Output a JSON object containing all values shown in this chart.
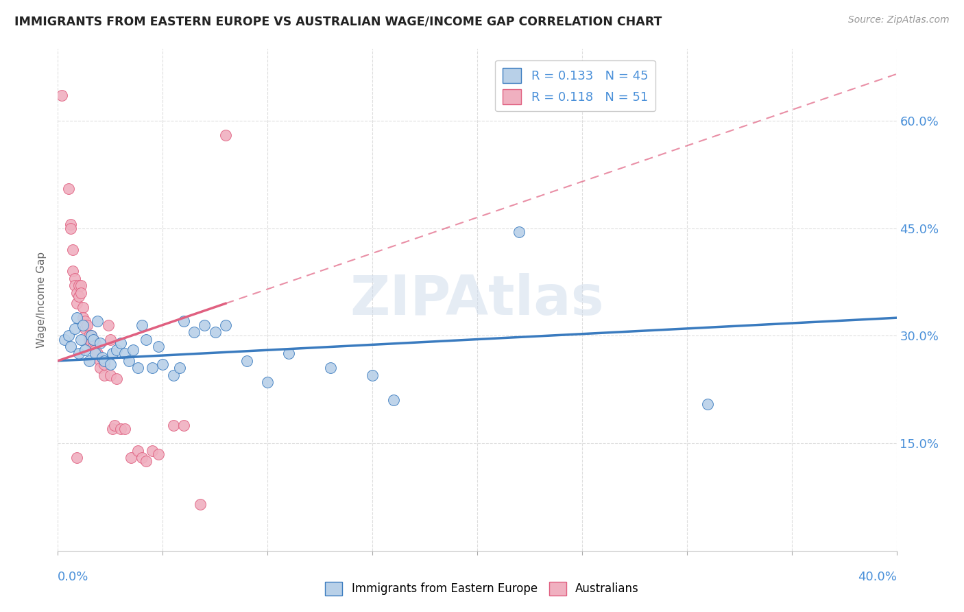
{
  "title": "IMMIGRANTS FROM EASTERN EUROPE VS AUSTRALIAN WAGE/INCOME GAP CORRELATION CHART",
  "source": "Source: ZipAtlas.com",
  "legend_labels": [
    "Immigrants from Eastern Europe",
    "Australians"
  ],
  "legend_R": [
    0.133,
    0.118
  ],
  "legend_N": [
    45,
    51
  ],
  "blue_color": "#b8d0e8",
  "pink_color": "#f0b0c0",
  "blue_line_color": "#3a7bbf",
  "pink_line_color": "#e06080",
  "blue_scatter": [
    [
      0.003,
      0.295
    ],
    [
      0.005,
      0.3
    ],
    [
      0.006,
      0.285
    ],
    [
      0.008,
      0.31
    ],
    [
      0.009,
      0.325
    ],
    [
      0.01,
      0.275
    ],
    [
      0.011,
      0.295
    ],
    [
      0.012,
      0.315
    ],
    [
      0.013,
      0.28
    ],
    [
      0.015,
      0.265
    ],
    [
      0.016,
      0.3
    ],
    [
      0.017,
      0.295
    ],
    [
      0.018,
      0.275
    ],
    [
      0.019,
      0.32
    ],
    [
      0.02,
      0.29
    ],
    [
      0.021,
      0.27
    ],
    [
      0.022,
      0.265
    ],
    [
      0.025,
      0.26
    ],
    [
      0.026,
      0.275
    ],
    [
      0.028,
      0.28
    ],
    [
      0.03,
      0.29
    ],
    [
      0.032,
      0.275
    ],
    [
      0.034,
      0.265
    ],
    [
      0.036,
      0.28
    ],
    [
      0.038,
      0.255
    ],
    [
      0.04,
      0.315
    ],
    [
      0.042,
      0.295
    ],
    [
      0.045,
      0.255
    ],
    [
      0.048,
      0.285
    ],
    [
      0.05,
      0.26
    ],
    [
      0.055,
      0.245
    ],
    [
      0.058,
      0.255
    ],
    [
      0.06,
      0.32
    ],
    [
      0.065,
      0.305
    ],
    [
      0.07,
      0.315
    ],
    [
      0.075,
      0.305
    ],
    [
      0.08,
      0.315
    ],
    [
      0.09,
      0.265
    ],
    [
      0.1,
      0.235
    ],
    [
      0.11,
      0.275
    ],
    [
      0.13,
      0.255
    ],
    [
      0.15,
      0.245
    ],
    [
      0.16,
      0.21
    ],
    [
      0.22,
      0.445
    ],
    [
      0.31,
      0.205
    ]
  ],
  "pink_scatter": [
    [
      0.002,
      0.635
    ],
    [
      0.005,
      0.505
    ],
    [
      0.006,
      0.455
    ],
    [
      0.006,
      0.45
    ],
    [
      0.007,
      0.42
    ],
    [
      0.007,
      0.39
    ],
    [
      0.008,
      0.38
    ],
    [
      0.008,
      0.37
    ],
    [
      0.009,
      0.345
    ],
    [
      0.009,
      0.36
    ],
    [
      0.01,
      0.37
    ],
    [
      0.01,
      0.355
    ],
    [
      0.011,
      0.37
    ],
    [
      0.011,
      0.36
    ],
    [
      0.012,
      0.34
    ],
    [
      0.012,
      0.325
    ],
    [
      0.013,
      0.32
    ],
    [
      0.013,
      0.31
    ],
    [
      0.014,
      0.315
    ],
    [
      0.015,
      0.3
    ],
    [
      0.015,
      0.295
    ],
    [
      0.016,
      0.3
    ],
    [
      0.016,
      0.29
    ],
    [
      0.017,
      0.295
    ],
    [
      0.017,
      0.285
    ],
    [
      0.018,
      0.29
    ],
    [
      0.018,
      0.28
    ],
    [
      0.019,
      0.275
    ],
    [
      0.02,
      0.265
    ],
    [
      0.02,
      0.255
    ],
    [
      0.022,
      0.245
    ],
    [
      0.022,
      0.26
    ],
    [
      0.024,
      0.315
    ],
    [
      0.025,
      0.295
    ],
    [
      0.025,
      0.245
    ],
    [
      0.026,
      0.17
    ],
    [
      0.027,
      0.175
    ],
    [
      0.028,
      0.24
    ],
    [
      0.03,
      0.17
    ],
    [
      0.032,
      0.17
    ],
    [
      0.035,
      0.13
    ],
    [
      0.038,
      0.14
    ],
    [
      0.04,
      0.13
    ],
    [
      0.042,
      0.125
    ],
    [
      0.045,
      0.14
    ],
    [
      0.048,
      0.135
    ],
    [
      0.055,
      0.175
    ],
    [
      0.06,
      0.175
    ],
    [
      0.068,
      0.065
    ],
    [
      0.08,
      0.58
    ],
    [
      0.009,
      0.13
    ]
  ],
  "xlim": [
    0.0,
    0.4
  ],
  "ylim": [
    0.0,
    0.7
  ],
  "yticks": [
    0.15,
    0.3,
    0.45,
    0.6
  ],
  "ytick_labels": [
    "15.0%",
    "30.0%",
    "45.0%",
    "60.0%"
  ],
  "background_color": "#ffffff",
  "watermark": "ZIPAtlas",
  "title_color": "#222222",
  "axis_label_color": "#4a90d9",
  "grid_color": "#dddddd",
  "ylabel": "Wage/Income Gap"
}
